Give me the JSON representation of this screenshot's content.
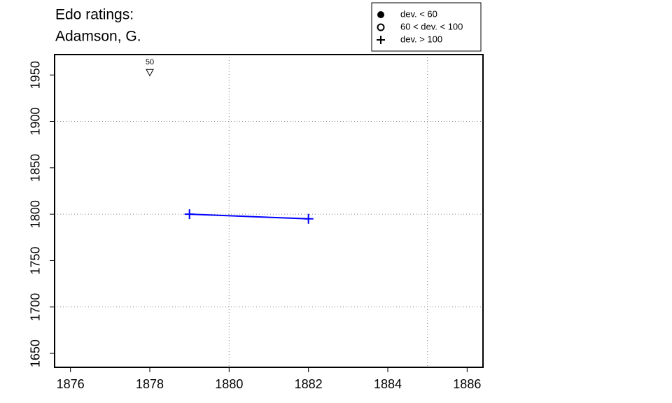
{
  "chart_data": {
    "type": "line",
    "title": "Edo ratings:",
    "subtitle": "Adamson, G.",
    "x": [
      1879,
      1882
    ],
    "series": [
      {
        "color": "#0000ff",
        "values": [
          1800,
          1795
        ]
      }
    ],
    "xlim": [
      1875.6,
      1886.4
    ],
    "ylim": [
      1635,
      1972
    ],
    "xticks": [
      1876,
      1878,
      1880,
      1882,
      1884,
      1886
    ],
    "yticks": [
      1650,
      1700,
      1750,
      1800,
      1850,
      1900,
      1950
    ],
    "xgrid": [
      1880,
      1885
    ],
    "ygrid": [
      1700,
      1800,
      1900
    ],
    "annotations": [
      {
        "x": 1878,
        "y": 1953,
        "label": "50"
      }
    ],
    "legend": [
      "dev. < 60",
      "60 < dev. < 100",
      "dev. > 100"
    ]
  }
}
